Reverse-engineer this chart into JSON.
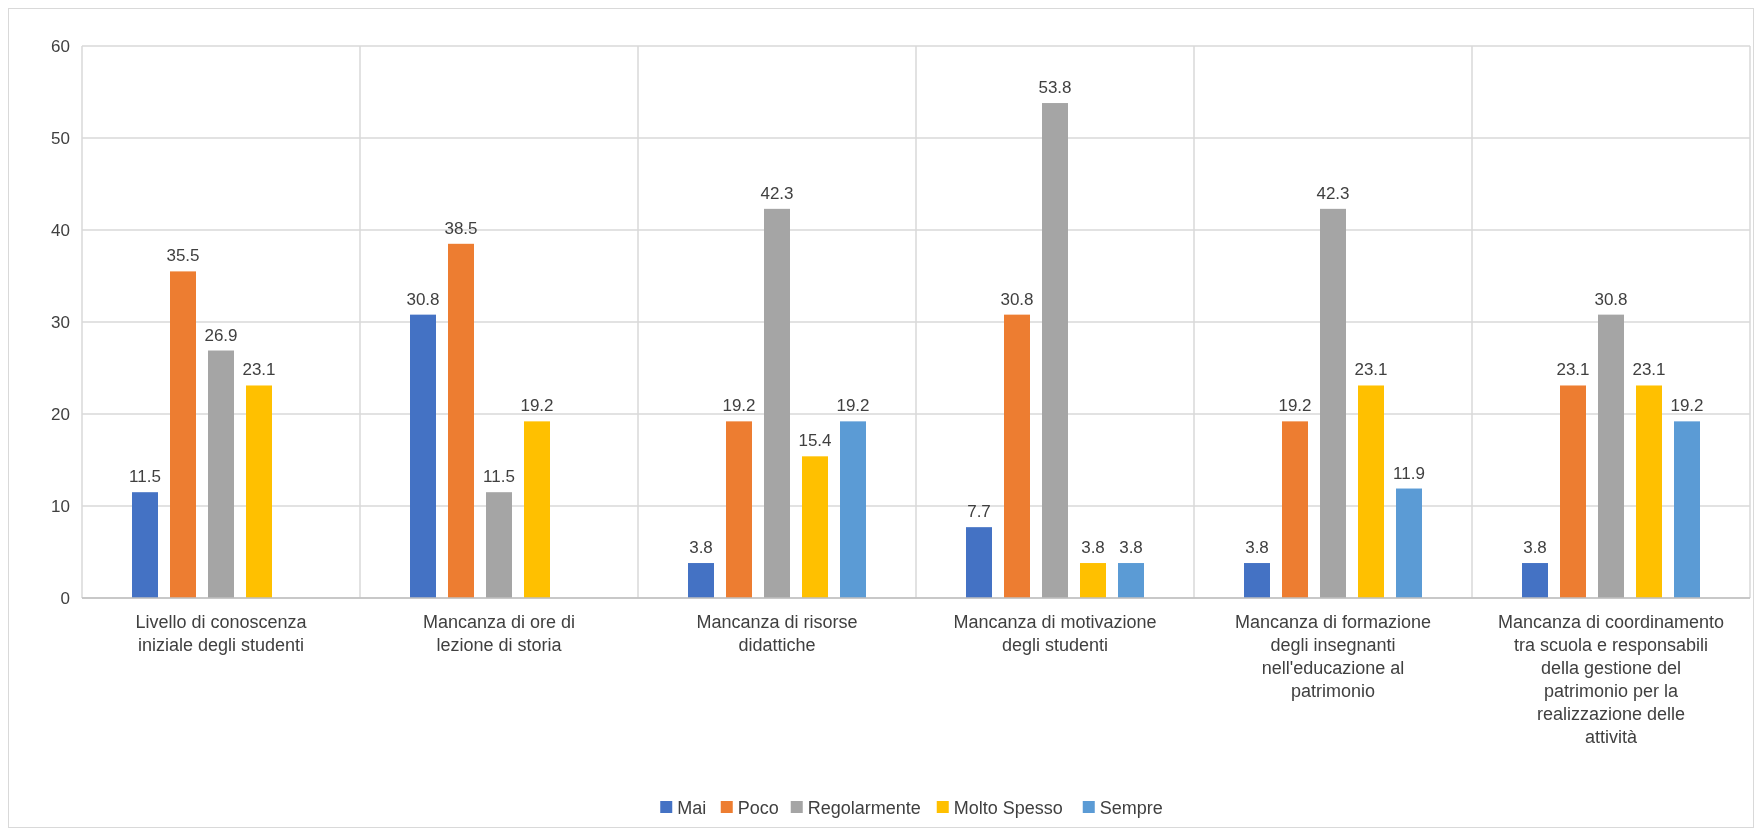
{
  "chart_data": {
    "type": "bar",
    "categories": [
      "Livello di conoscenza iniziale degli studenti",
      "Mancanza di ore di lezione di storia",
      "Mancanza di risorse didattiche",
      "Mancanza di motivazione degli studenti",
      "Mancanza di formazione degli insegnanti nell'educazione al patrimonio",
      "Mancanza di coordinamento tra scuola e responsabili della gestione del patrimonio per la realizzazione delle attività"
    ],
    "series": [
      {
        "name": "Mai",
        "color": "#4472c4",
        "values": [
          11.5,
          30.8,
          3.8,
          7.7,
          3.8,
          3.8
        ]
      },
      {
        "name": "Poco",
        "color": "#ed7d31",
        "values": [
          35.5,
          38.5,
          19.2,
          30.8,
          19.2,
          23.1
        ]
      },
      {
        "name": "Regolarmente",
        "color": "#a5a5a5",
        "values": [
          26.9,
          11.5,
          42.3,
          53.8,
          42.3,
          30.8
        ]
      },
      {
        "name": "Molto Spesso",
        "color": "#ffc000",
        "values": [
          23.1,
          19.2,
          15.4,
          3.8,
          23.1,
          23.1
        ]
      },
      {
        "name": "Sempre",
        "color": "#5b9bd5",
        "values": [
          null,
          null,
          19.2,
          3.8,
          11.9,
          19.2
        ]
      }
    ],
    "ylim": [
      0,
      60
    ],
    "yticks": [
      0,
      10,
      20,
      30,
      40,
      50,
      60
    ],
    "grid": true,
    "data_labels": true,
    "legend": "bottom"
  }
}
